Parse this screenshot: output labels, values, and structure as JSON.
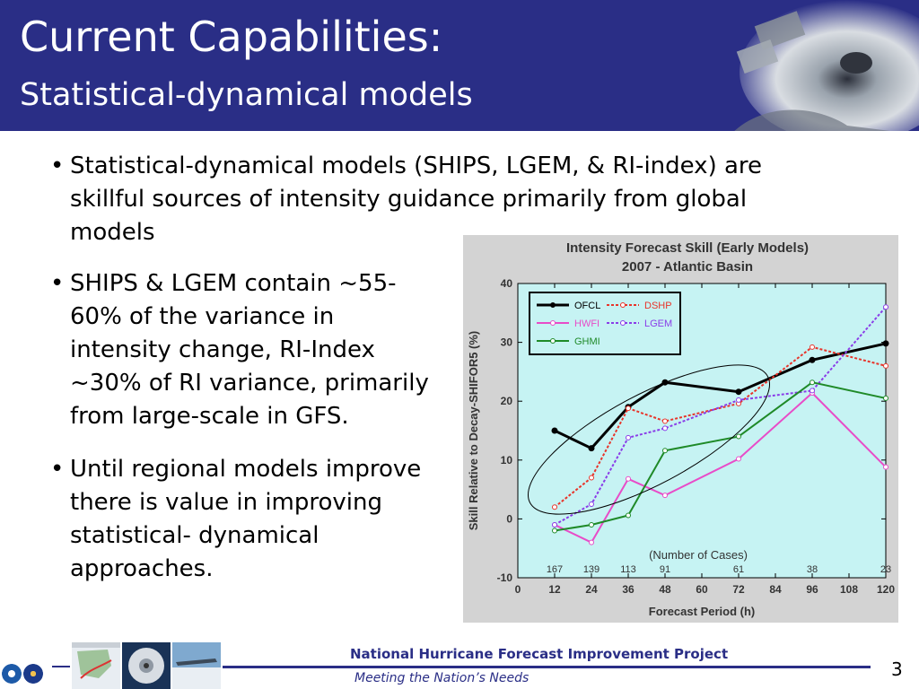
{
  "slide": {
    "title": "Current Capabilities:",
    "subtitle": "Statistical-dynamical models",
    "page_number": "3"
  },
  "bullets": [
    {
      "line1": "Statistical-dynamical models (SHIPS, LGEM, & RI-index) are",
      "line2": "skillful sources of intensity guidance primarily from global",
      "line3": "models"
    },
    {
      "line1": "SHIPS & LGEM contain ~55-",
      "line2": "60% of the variance in",
      "line3": "intensity change, RI-Index",
      "line4": "~30% of RI variance, primarily",
      "line5": "from large-scale in GFS."
    },
    {
      "line1": "Until regional models improve",
      "line2": "there is value in improving",
      "line3": "statistical- dynamical",
      "line4": "approaches."
    }
  ],
  "footer": {
    "project": "National Hurricane Forecast Improvement Project",
    "tagline": "Meeting the Nation’s Needs"
  },
  "colors": {
    "header_bg": "#2a2e86",
    "plot_bg": "#c6f3f3",
    "chart_frame": "#d3d3d3"
  },
  "chart_data": {
    "type": "line",
    "title": "Intensity Forecast Skill (Early Models)",
    "subtitle": "2007 - Atlantic Basin",
    "xlabel": "Forecast Period (h)",
    "ylabel": "Skill Relative to Decay-SHIFOR5 (%)",
    "xlim": [
      0,
      120
    ],
    "ylim": [
      -10,
      40
    ],
    "xticks": [
      0,
      12,
      24,
      36,
      48,
      60,
      72,
      84,
      96,
      108,
      120
    ],
    "yticks": [
      -10,
      0,
      10,
      20,
      30,
      40
    ],
    "x": [
      12,
      24,
      36,
      48,
      72,
      96,
      120
    ],
    "series": [
      {
        "name": "OFCL",
        "color": "#000000",
        "values": [
          15,
          12,
          19,
          23.2,
          21.6,
          27,
          29.8
        ]
      },
      {
        "name": "DSHP",
        "color": "#e8342a",
        "values": [
          2,
          7,
          18.8,
          16.6,
          19.6,
          29.2,
          26
        ]
      },
      {
        "name": "HWFI",
        "color": "#e84cc8",
        "values": [
          -1,
          -4,
          6.8,
          4,
          10.2,
          21.4,
          8.8
        ]
      },
      {
        "name": "LGEM",
        "color": "#8a3de8",
        "values": [
          -1,
          2.5,
          13.8,
          15.4,
          20.2,
          21.8,
          36
        ]
      },
      {
        "name": "GHMI",
        "color": "#1f8a28",
        "values": [
          -2,
          -1,
          0.6,
          11.6,
          14,
          23.2,
          20.5
        ]
      }
    ],
    "legend_position": "top-left",
    "annotation": "(Number of Cases)",
    "case_counts": [
      {
        "x": 12,
        "label": "167"
      },
      {
        "x": 24,
        "label": "139"
      },
      {
        "x": 36,
        "label": "113"
      },
      {
        "x": 48,
        "label": "91"
      },
      {
        "x": 72,
        "label": "61"
      },
      {
        "x": 96,
        "label": "38"
      },
      {
        "x": 120,
        "label": "23"
      }
    ],
    "grid": false
  }
}
